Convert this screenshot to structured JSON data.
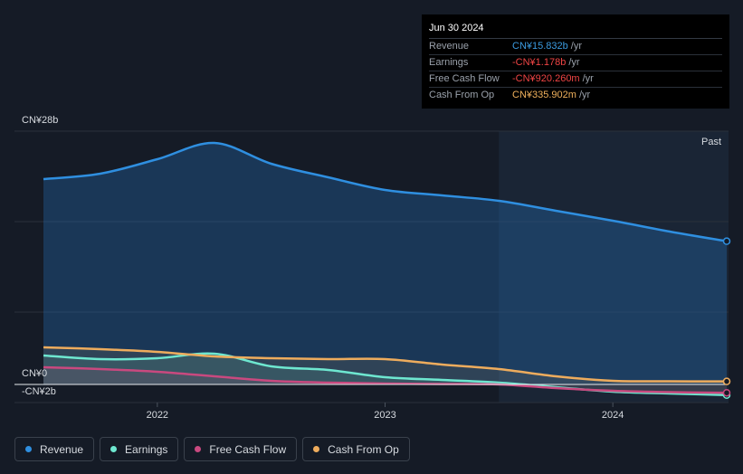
{
  "tooltip": {
    "date": "Jun 30 2024",
    "rows": [
      {
        "label": "Revenue",
        "value": "CN¥15.832b",
        "unit": "/yr",
        "color": "#3b9be0"
      },
      {
        "label": "Earnings",
        "value": "-CN¥1.178b",
        "unit": "/yr",
        "color": "#ef4444"
      },
      {
        "label": "Free Cash Flow",
        "value": "-CN¥920.260m",
        "unit": "/yr",
        "color": "#ef4444"
      },
      {
        "label": "Cash From Op",
        "value": "CN¥335.902m",
        "unit": "/yr",
        "color": "#f0b15c"
      }
    ]
  },
  "chart_data": {
    "type": "area",
    "y_top_label": "CN¥28b",
    "y_zero_label": "CN¥0",
    "y_bottom_label": "-CN¥2b",
    "ylim": [
      -2,
      28
    ],
    "xlim": [
      2021.5,
      2024.5
    ],
    "x_ticks": [
      2022,
      2023,
      2024
    ],
    "x_tick_labels": [
      "2022",
      "2023",
      "2024"
    ],
    "past_start": 2023.5,
    "past_label": "Past",
    "series": [
      {
        "name": "Revenue",
        "color": "#2f8fe0",
        "fill": "rgba(36,110,180,0.35)",
        "x": [
          2021.5,
          2021.75,
          2022.0,
          2022.25,
          2022.5,
          2022.75,
          2023.0,
          2023.25,
          2023.5,
          2023.75,
          2024.0,
          2024.25,
          2024.5
        ],
        "values": [
          22.7,
          23.3,
          24.9,
          26.7,
          24.4,
          22.9,
          21.5,
          20.9,
          20.3,
          19.2,
          18.1,
          16.9,
          15.832
        ]
      },
      {
        "name": "Earnings",
        "color": "#6ee7d0",
        "fill": "rgba(110,231,208,0.12)",
        "x": [
          2021.5,
          2021.75,
          2022.0,
          2022.25,
          2022.5,
          2022.75,
          2023.0,
          2023.25,
          2023.5,
          2023.75,
          2024.0,
          2024.25,
          2024.5
        ],
        "values": [
          3.2,
          2.8,
          2.9,
          3.4,
          2.0,
          1.6,
          0.8,
          0.5,
          0.2,
          -0.3,
          -0.8,
          -1.0,
          -1.178
        ]
      },
      {
        "name": "Free Cash Flow",
        "color": "#c9497f",
        "fill": "rgba(201,73,127,0.12)",
        "x": [
          2021.5,
          2021.75,
          2022.0,
          2022.25,
          2022.5,
          2022.75,
          2023.0,
          2023.25,
          2023.5,
          2023.75,
          2024.0,
          2024.25,
          2024.5
        ],
        "values": [
          1.9,
          1.7,
          1.4,
          0.9,
          0.4,
          0.2,
          0.1,
          0.05,
          0.0,
          -0.4,
          -0.7,
          -0.85,
          -0.92026
        ]
      },
      {
        "name": "Cash From Op",
        "color": "#eeac5d",
        "fill": "rgba(238,172,93,0.10)",
        "x": [
          2021.5,
          2021.75,
          2022.0,
          2022.25,
          2022.5,
          2022.75,
          2023.0,
          2023.25,
          2023.5,
          2023.75,
          2024.0,
          2024.25,
          2024.5
        ],
        "values": [
          4.1,
          3.9,
          3.6,
          3.1,
          2.9,
          2.8,
          2.8,
          2.2,
          1.7,
          0.9,
          0.4,
          0.35,
          0.335902
        ]
      }
    ],
    "legend": [
      "Revenue",
      "Earnings",
      "Free Cash Flow",
      "Cash From Op"
    ]
  },
  "legend_items": [
    {
      "label": "Revenue",
      "color": "#2f8fe0"
    },
    {
      "label": "Earnings",
      "color": "#6ee7d0"
    },
    {
      "label": "Free Cash Flow",
      "color": "#c9497f"
    },
    {
      "label": "Cash From Op",
      "color": "#eeac5d"
    }
  ]
}
